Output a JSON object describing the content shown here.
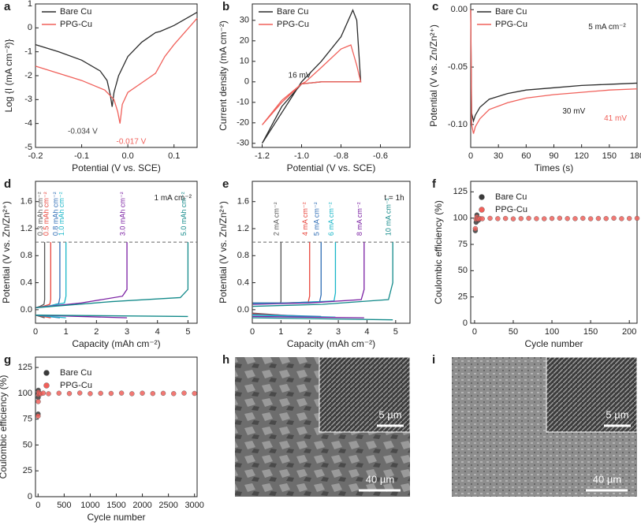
{
  "chart_data": [
    {
      "type": "line",
      "label": "a",
      "xlabel": "Potential (V vs. SCE)",
      "ylabel": "Log {I (mA cm⁻²)}",
      "xlim": [
        -0.2,
        0.15
      ],
      "xticks": [
        -0.2,
        -0.1,
        {
          "value": 0,
          "label": "0.0"
        },
        0.1
      ],
      "ylim": [
        -5,
        1
      ],
      "yticks": [
        -5,
        -4,
        -3,
        -2,
        -1,
        0,
        1
      ],
      "legend": "upper-left",
      "series": [
        {
          "name": "Bare Cu",
          "color": "#2b2b2b",
          "x": [
            -0.2,
            -0.15,
            -0.1,
            -0.06,
            -0.045,
            -0.038,
            -0.034,
            -0.03,
            -0.02,
            0,
            0.03,
            0.06,
            0.07,
            0.1,
            0.15
          ],
          "values": [
            -0.7,
            -1.0,
            -1.35,
            -1.8,
            -2.2,
            -2.8,
            -3.3,
            -2.7,
            -2.0,
            -1.2,
            -0.6,
            -0.2,
            -0.15,
            0.1,
            0.65
          ]
        },
        {
          "name": "PPG-Cu",
          "color": "#f0605a",
          "x": [
            -0.2,
            -0.15,
            -0.1,
            -0.05,
            -0.03,
            -0.022,
            -0.017,
            -0.012,
            0,
            0.03,
            0.06,
            0.08,
            0.1,
            0.15
          ],
          "values": [
            -1.6,
            -1.9,
            -2.2,
            -2.6,
            -3.0,
            -3.5,
            -4.0,
            -3.2,
            -2.7,
            -2.3,
            -1.9,
            -1.2,
            -0.7,
            0.4
          ]
        }
      ],
      "annotations": [
        {
          "text": "-0.034 V",
          "color": "#444444"
        },
        {
          "text": "-0.017 V",
          "color": "#f0605a"
        }
      ]
    },
    {
      "type": "line",
      "label": "b",
      "xlabel": "Potential (V vs. SCE)",
      "ylabel": "Current density (mA cm⁻²)",
      "xlim": [
        -1.25,
        -0.45
      ],
      "xticks": [
        -1.2,
        {
          "value": -1,
          "label": "-1.0"
        },
        -0.8,
        -0.6
      ],
      "ylim": [
        -32,
        38
      ],
      "yticks": [
        -30,
        -20,
        -10,
        0,
        10,
        20,
        30
      ],
      "legend": "upper-left",
      "series": [
        {
          "name": "Bare Cu",
          "color": "#2b2b2b",
          "x": [
            -1.2,
            -1.1,
            -1.02,
            -1.0,
            -0.9,
            -0.8,
            -0.74,
            -0.72,
            -0.7,
            -0.8,
            -0.9,
            -1.0,
            -1.1,
            -1.2
          ],
          "values": [
            -30,
            -15,
            -3,
            0,
            10,
            22,
            35,
            30,
            0,
            0,
            0,
            -1,
            -12,
            -30
          ]
        },
        {
          "name": "PPG-Cu",
          "color": "#f0605a",
          "x": [
            -1.2,
            -1.1,
            -1.0,
            -0.98,
            -0.9,
            -0.8,
            -0.75,
            -0.72,
            -0.7,
            -0.8,
            -0.9,
            -1.0,
            -1.1,
            -1.2
          ],
          "values": [
            -21,
            -10,
            -1,
            0,
            7,
            16,
            18,
            8,
            0,
            0,
            0,
            -1,
            -9,
            -21
          ]
        }
      ],
      "annotations": [
        {
          "text": "16 mV",
          "color": "#222222"
        }
      ]
    },
    {
      "type": "line",
      "label": "c",
      "xlabel": "Times (s)",
      "ylabel": "Potential (V vs. Zn/Zn²⁺)",
      "xlim": [
        0,
        180
      ],
      "xticks": [
        0,
        30,
        60,
        90,
        120,
        150,
        180
      ],
      "ylim": [
        -0.12,
        0.005
      ],
      "yticks": [
        {
          "value": -0.1,
          "label": "-0.10"
        },
        -0.05,
        {
          "value": 0,
          "label": "0.00"
        }
      ],
      "legend": "upper-left",
      "series": [
        {
          "name": "Bare Cu",
          "color": "#2b2b2b",
          "x": [
            0,
            1,
            3,
            5,
            10,
            20,
            40,
            60,
            90,
            120,
            150,
            180
          ],
          "values": [
            0,
            -0.09,
            -0.097,
            -0.092,
            -0.085,
            -0.078,
            -0.073,
            -0.07,
            -0.068,
            -0.066,
            -0.065,
            -0.064
          ]
        },
        {
          "name": "PPG-Cu",
          "color": "#f0605a",
          "x": [
            0,
            1,
            3,
            5,
            10,
            20,
            40,
            60,
            90,
            120,
            150,
            180
          ],
          "values": [
            0,
            -0.1,
            -0.108,
            -0.102,
            -0.095,
            -0.087,
            -0.081,
            -0.077,
            -0.074,
            -0.072,
            -0.07,
            -0.069
          ]
        }
      ],
      "annotations": [
        {
          "text": "5 mA cm⁻²",
          "color": "#222222"
        },
        {
          "text": "30 mV",
          "color": "#222222"
        },
        {
          "text": "41 mV",
          "color": "#f0605a"
        }
      ]
    },
    {
      "type": "line",
      "label": "d",
      "xlabel": "Capacity (mAh cm⁻²)",
      "ylabel": "Potential (V vs. Zn/Zn²⁺)",
      "xlim": [
        0,
        5.3
      ],
      "xticks": [
        0,
        1,
        2,
        3,
        4,
        5
      ],
      "ylim": [
        -0.2,
        1.9
      ],
      "yticks": [
        {
          "value": 0,
          "label": "0.0"
        },
        0.4,
        0.8,
        1.2,
        1.6
      ],
      "legend": "inline",
      "hline": 1.0,
      "series": [
        {
          "name": "0.3 mAh cm⁻²",
          "color": "#555555",
          "x": [
            0,
            0.3,
            0,
            0.02,
            0.15,
            0.28,
            0.3,
            0.3
          ],
          "values": [
            -0.08,
            -0.12,
            null,
            0.03,
            0.05,
            0.08,
            0.15,
            1.0
          ]
        },
        {
          "name": "0.5 mAh cm⁻²",
          "color": "#e8453c",
          "x": [
            0,
            0.5,
            0,
            0.02,
            0.25,
            0.47,
            0.5,
            0.5
          ],
          "values": [
            -0.08,
            -0.12,
            null,
            0.03,
            0.05,
            0.08,
            0.15,
            1.0
          ]
        },
        {
          "name": "0.8 mAh cm⁻²",
          "color": "#2f6db5",
          "x": [
            0,
            0.8,
            0,
            0.02,
            0.4,
            0.76,
            0.8,
            0.8
          ],
          "values": [
            -0.08,
            -0.12,
            null,
            0.03,
            0.05,
            0.09,
            0.18,
            1.0
          ]
        },
        {
          "name": "1.0 mAh cm⁻²",
          "color": "#19b6c8",
          "x": [
            0,
            1.0,
            0,
            0.02,
            0.5,
            0.95,
            1.0,
            1.0
          ],
          "values": [
            -0.08,
            -0.12,
            null,
            0.03,
            0.06,
            0.1,
            0.2,
            1.0
          ]
        },
        {
          "name": "3.0 mAh cm⁻²",
          "color": "#7a1fa2",
          "x": [
            0,
            3.0,
            0,
            0.02,
            1.5,
            2.85,
            3.0,
            3.0
          ],
          "values": [
            -0.08,
            -0.12,
            null,
            0.03,
            0.1,
            0.2,
            0.3,
            1.0
          ]
        },
        {
          "name": "5.0 mAh cm⁻²",
          "color": "#138a8a",
          "x": [
            0,
            5.0,
            0,
            0.02,
            2.5,
            4.75,
            5.0,
            5.0
          ],
          "values": [
            -0.08,
            -0.1,
            null,
            0.03,
            0.12,
            0.18,
            0.3,
            1.0
          ]
        }
      ],
      "annotations": [
        {
          "text": "1 mA cm⁻²",
          "color": "#222222"
        }
      ]
    },
    {
      "type": "line",
      "label": "e",
      "xlabel": "Capacity (mAh cm⁻²)",
      "ylabel": "Potential (V vs. Zn/Zn²⁺)",
      "xlim": [
        0,
        5.5
      ],
      "xticks": [
        0,
        1,
        2,
        3,
        4,
        5
      ],
      "ylim": [
        -0.2,
        1.9
      ],
      "yticks": [
        {
          "value": 0,
          "label": "0.0"
        },
        0.4,
        0.8,
        1.2,
        1.6
      ],
      "legend": "inline",
      "hline": 1.0,
      "series": [
        {
          "name": "2 mA cm⁻²",
          "color": "#555555",
          "x": [
            0,
            1,
            0,
            0.02,
            0.5,
            0.98,
            1,
            1
          ],
          "values": [
            -0.05,
            -0.08,
            null,
            0.1,
            0.1,
            0.1,
            0.12,
            1.0
          ]
        },
        {
          "name": "4 mA cm⁻²",
          "color": "#e8453c",
          "x": [
            0,
            2,
            0,
            0.02,
            1,
            1.95,
            2,
            2
          ],
          "values": [
            -0.06,
            -0.1,
            null,
            0.1,
            0.1,
            0.11,
            0.2,
            1.0
          ]
        },
        {
          "name": "5 mA cm⁻²",
          "color": "#2f6db5",
          "x": [
            0,
            2.4,
            0,
            0.02,
            1.2,
            2.35,
            2.4,
            2.4
          ],
          "values": [
            -0.07,
            -0.1,
            null,
            0.1,
            0.1,
            0.12,
            0.22,
            1.0
          ]
        },
        {
          "name": "6 mA cm⁻²",
          "color": "#19b6c8",
          "x": [
            0,
            2.9,
            0,
            0.02,
            1.45,
            2.85,
            2.9,
            2.9
          ],
          "values": [
            -0.08,
            -0.11,
            null,
            0.09,
            0.1,
            0.13,
            0.25,
            1.0
          ]
        },
        {
          "name": "8 mA cm⁻²",
          "color": "#7a1fa2",
          "x": [
            0,
            3.9,
            0,
            0.02,
            1.95,
            3.8,
            3.9,
            3.9
          ],
          "values": [
            -0.1,
            -0.12,
            null,
            0.08,
            0.1,
            0.15,
            0.3,
            1.0
          ]
        },
        {
          "name": "10 mA cm⁻²",
          "color": "#138a8a",
          "x": [
            0,
            4.9,
            0,
            0.02,
            2.45,
            4.75,
            4.9,
            4.9
          ],
          "values": [
            -0.12,
            -0.15,
            null,
            0.05,
            0.08,
            0.15,
            0.4,
            1.0
          ]
        }
      ],
      "annotations": [
        {
          "text": "t = 1h",
          "color": "#222222"
        }
      ]
    },
    {
      "type": "scatter",
      "label": "f",
      "xlabel": "Cycle number",
      "ylabel": "Coulombic efficiency (%)",
      "xlim": [
        -5,
        210
      ],
      "xticks": [
        0,
        50,
        100,
        150,
        200
      ],
      "ylim": [
        0,
        135
      ],
      "yticks": [
        0,
        25,
        50,
        75,
        100,
        125
      ],
      "legend": "upper-left",
      "series": [
        {
          "name": "Bare Cu",
          "color": "#3a3a3a",
          "x": [
            1,
            2,
            3,
            4,
            5
          ],
          "values": [
            88,
            96,
            103,
            99,
            98
          ]
        },
        {
          "name": "PPG-Cu",
          "color": "#f0605a",
          "x": [
            1,
            2,
            3,
            4,
            5,
            7,
            10,
            20,
            30,
            40,
            50,
            60,
            70,
            80,
            90,
            100,
            110,
            120,
            130,
            140,
            150,
            160,
            170,
            180,
            190,
            200,
            210
          ],
          "values": [
            90,
            99,
            101,
            99.5,
            99,
            99.6,
            99.4,
            99.8,
            99.5,
            99.7,
            99.3,
            99.6,
            99.8,
            99.5,
            99.4,
            99.7,
            99.9,
            99.6,
            99.5,
            99.8,
            99.4,
            99.7,
            99.6,
            99.9,
            99.5,
            99.7,
            99.8
          ]
        }
      ],
      "annotations": []
    },
    {
      "type": "scatter",
      "label": "g",
      "xlabel": "Cycle number",
      "ylabel": "Coulombic efficiency (%)",
      "xlim": [
        -50,
        3050
      ],
      "xticks": [
        0,
        500,
        1000,
        1500,
        2000,
        2500,
        3000
      ],
      "ylim": [
        0,
        135
      ],
      "yticks": [
        0,
        25,
        50,
        75,
        100,
        125
      ],
      "legend": "upper-left",
      "series": [
        {
          "name": "Bare Cu",
          "color": "#3a3a3a",
          "x": [
            1,
            3,
            5,
            10,
            20
          ],
          "values": [
            80,
            96,
            103,
            100,
            99
          ]
        },
        {
          "name": "PPG-Cu",
          "color": "#f0605a",
          "x": [
            1,
            3,
            5,
            10,
            20,
            50,
            100,
            200,
            400,
            600,
            800,
            1000,
            1200,
            1400,
            1600,
            1800,
            2000,
            2200,
            2400,
            2600,
            2800,
            3000
          ],
          "values": [
            78,
            92,
            99,
            101,
            100,
            99.5,
            100.2,
            99.6,
            100.1,
            99.8,
            100.3,
            99.7,
            100.0,
            99.9,
            100.2,
            99.6,
            100.1,
            99.8,
            100.0,
            99.7,
            100.2,
            99.9
          ]
        }
      ],
      "annotations": []
    }
  ],
  "images": [
    {
      "label": "h",
      "inset_scale": "5 µm",
      "scale": "40 µm"
    },
    {
      "label": "i",
      "inset_scale": "5 µm",
      "scale": "40 µm"
    }
  ]
}
